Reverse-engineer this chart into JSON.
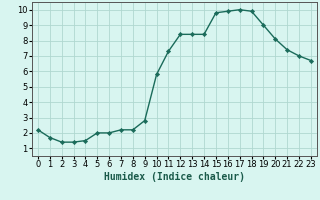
{
  "x": [
    0,
    1,
    2,
    3,
    4,
    5,
    6,
    7,
    8,
    9,
    10,
    11,
    12,
    13,
    14,
    15,
    16,
    17,
    18,
    19,
    20,
    21,
    22,
    23
  ],
  "y": [
    2.2,
    1.7,
    1.4,
    1.4,
    1.5,
    2.0,
    2.0,
    2.2,
    2.2,
    2.8,
    5.8,
    7.3,
    8.4,
    8.4,
    8.4,
    9.8,
    9.9,
    10.0,
    9.9,
    9.0,
    8.1,
    7.4,
    7.0,
    6.7
  ],
  "line_color": "#1a6b5a",
  "marker": "D",
  "marker_size": 2.2,
  "bg_color": "#d8f5f0",
  "grid_color": "#b0d8d0",
  "xlabel": "Humidex (Indice chaleur)",
  "xlim": [
    -0.5,
    23.5
  ],
  "ylim": [
    0.5,
    10.5
  ],
  "xticks": [
    0,
    1,
    2,
    3,
    4,
    5,
    6,
    7,
    8,
    9,
    10,
    11,
    12,
    13,
    14,
    15,
    16,
    17,
    18,
    19,
    20,
    21,
    22,
    23
  ],
  "yticks": [
    1,
    2,
    3,
    4,
    5,
    6,
    7,
    8,
    9,
    10
  ],
  "xlabel_fontsize": 7.0,
  "tick_fontsize": 6.0,
  "line_width": 1.0,
  "spine_color": "#555555"
}
